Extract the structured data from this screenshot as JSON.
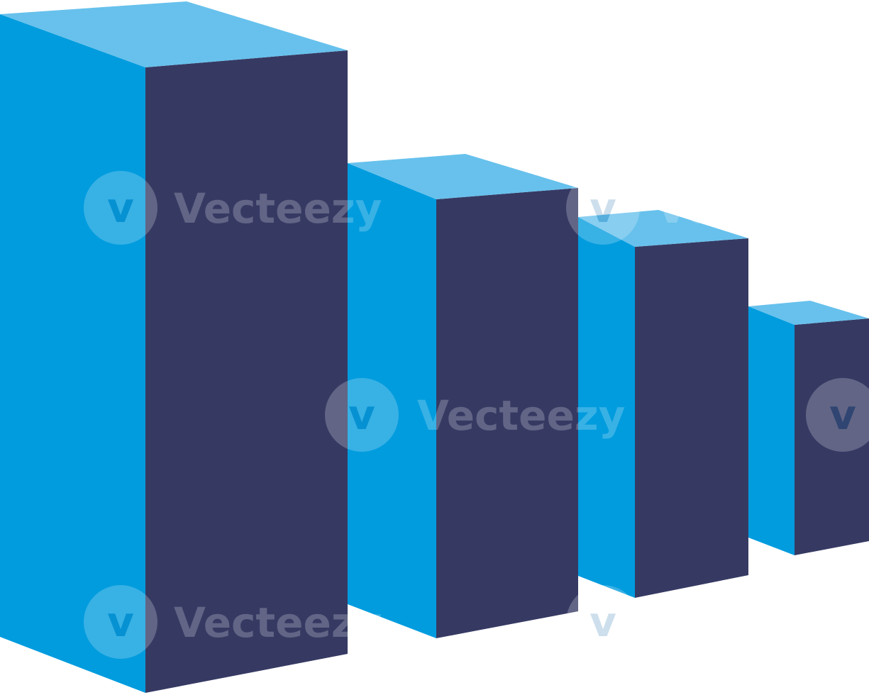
{
  "illustration": {
    "subject": "descending isometric bar graphic",
    "colors": {
      "top": "#67C1EC",
      "left": "#009CDE",
      "right": "#363A63",
      "background": "#FFFFFF",
      "watermark": "#FFFFFF"
    }
  },
  "watermark": {
    "text": "Vecteezy",
    "logo_glyph": "v",
    "icon": "vecteezy-logo-icon"
  }
}
